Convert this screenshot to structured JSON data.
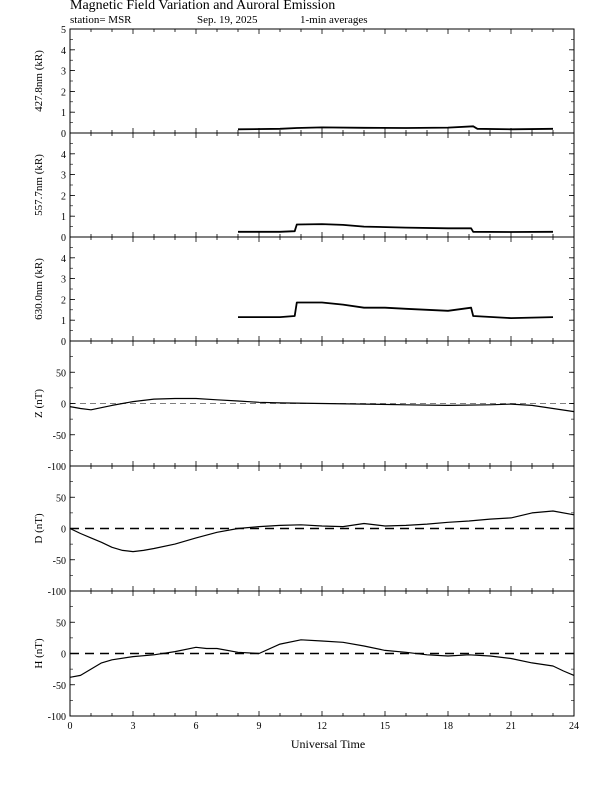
{
  "header": {
    "title": "Magnetic Field Variation and Auroral Emission",
    "station": "station= MSR",
    "date": "Sep. 19, 2025",
    "averaging": "1-min averages"
  },
  "chart_data": [
    {
      "type": "line",
      "id": "p4278",
      "ylabel": "427.8nm (kR)",
      "ylim": [
        0,
        5
      ],
      "yticks": [
        0,
        1,
        2,
        3,
        4,
        5
      ],
      "xlim": [
        0,
        24
      ],
      "x": [
        8.0,
        10.0,
        10.8,
        12.0,
        14.0,
        16.0,
        18.0,
        19.2,
        19.4,
        21.0,
        23.0
      ],
      "values": [
        0.18,
        0.2,
        0.24,
        0.27,
        0.25,
        0.24,
        0.26,
        0.32,
        0.2,
        0.18,
        0.2
      ]
    },
    {
      "type": "line",
      "id": "p5577",
      "ylabel": "557.7nm (kR)",
      "ylim": [
        0,
        5
      ],
      "yticks": [
        0,
        1,
        2,
        3,
        4
      ],
      "xlim": [
        0,
        24
      ],
      "x": [
        8.0,
        10.0,
        10.7,
        10.8,
        12.0,
        13.0,
        14.0,
        16.0,
        18.0,
        19.1,
        19.2,
        21.0,
        23.0
      ],
      "values": [
        0.25,
        0.25,
        0.28,
        0.6,
        0.62,
        0.58,
        0.5,
        0.45,
        0.42,
        0.42,
        0.25,
        0.24,
        0.25
      ]
    },
    {
      "type": "line",
      "id": "p6300",
      "ylabel": "630.0nm (kR)",
      "ylim": [
        0,
        5
      ],
      "yticks": [
        0,
        1,
        2,
        3,
        4
      ],
      "xlim": [
        0,
        24
      ],
      "x": [
        8.0,
        10.0,
        10.7,
        10.8,
        12.0,
        13.0,
        14.0,
        15.0,
        16.0,
        17.0,
        18.0,
        19.1,
        19.2,
        21.0,
        23.0
      ],
      "values": [
        1.15,
        1.15,
        1.2,
        1.85,
        1.85,
        1.75,
        1.6,
        1.6,
        1.55,
        1.5,
        1.45,
        1.6,
        1.2,
        1.1,
        1.15
      ]
    },
    {
      "type": "line",
      "id": "pZ",
      "ylabel": "Z (nT)",
      "ylim": [
        -100,
        100
      ],
      "yticks": [
        -100,
        -50,
        0,
        50
      ],
      "xlim": [
        0,
        24
      ],
      "baseline": "dashed-thin",
      "x": [
        0,
        0.5,
        1,
        2,
        3,
        4,
        5,
        6,
        7,
        8,
        9,
        10,
        12,
        14,
        16,
        18,
        20,
        21,
        22,
        23,
        24
      ],
      "values": [
        -5,
        -8,
        -10,
        -3,
        3,
        7,
        8,
        8,
        6,
        4,
        2,
        1,
        0,
        -1,
        -2,
        -3,
        -2,
        -1,
        -3,
        -8,
        -13
      ]
    },
    {
      "type": "line",
      "id": "pD",
      "ylabel": "D (nT)",
      "ylim": [
        -100,
        100
      ],
      "yticks": [
        -100,
        -50,
        0,
        50
      ],
      "xlim": [
        0,
        24
      ],
      "baseline": "dashed",
      "x": [
        0,
        0.5,
        1,
        1.5,
        2,
        2.5,
        3,
        3.5,
        4,
        5,
        6,
        7,
        8,
        9,
        10,
        11,
        12,
        13,
        14,
        15,
        16,
        17,
        18,
        19,
        20,
        21,
        22,
        23,
        24
      ],
      "values": [
        0,
        -8,
        -15,
        -22,
        -30,
        -35,
        -37,
        -35,
        -32,
        -25,
        -15,
        -6,
        0,
        3,
        5,
        6,
        4,
        3,
        8,
        4,
        5,
        7,
        10,
        12,
        15,
        17,
        25,
        28,
        22
      ]
    },
    {
      "type": "line",
      "id": "pH",
      "ylabel": "H (nT)",
      "ylim": [
        -100,
        100
      ],
      "yticks": [
        -100,
        -50,
        0,
        50
      ],
      "xlim": [
        0,
        24
      ],
      "xticks": [
        0,
        3,
        6,
        9,
        12,
        15,
        18,
        21,
        24
      ],
      "xlabel": "Universal Time",
      "baseline": "dashed",
      "x": [
        0,
        0.5,
        1,
        1.5,
        2,
        3,
        4,
        5,
        6,
        6.5,
        7,
        8,
        9,
        10,
        11,
        12,
        13,
        14,
        15,
        16,
        17,
        18,
        19,
        20,
        21,
        22,
        23,
        23.5,
        24
      ],
      "values": [
        -38,
        -35,
        -25,
        -15,
        -10,
        -5,
        -2,
        3,
        10,
        8,
        8,
        2,
        0,
        15,
        22,
        20,
        18,
        12,
        5,
        2,
        -2,
        -4,
        -2,
        -4,
        -8,
        -15,
        -20,
        -28,
        -35
      ]
    }
  ]
}
